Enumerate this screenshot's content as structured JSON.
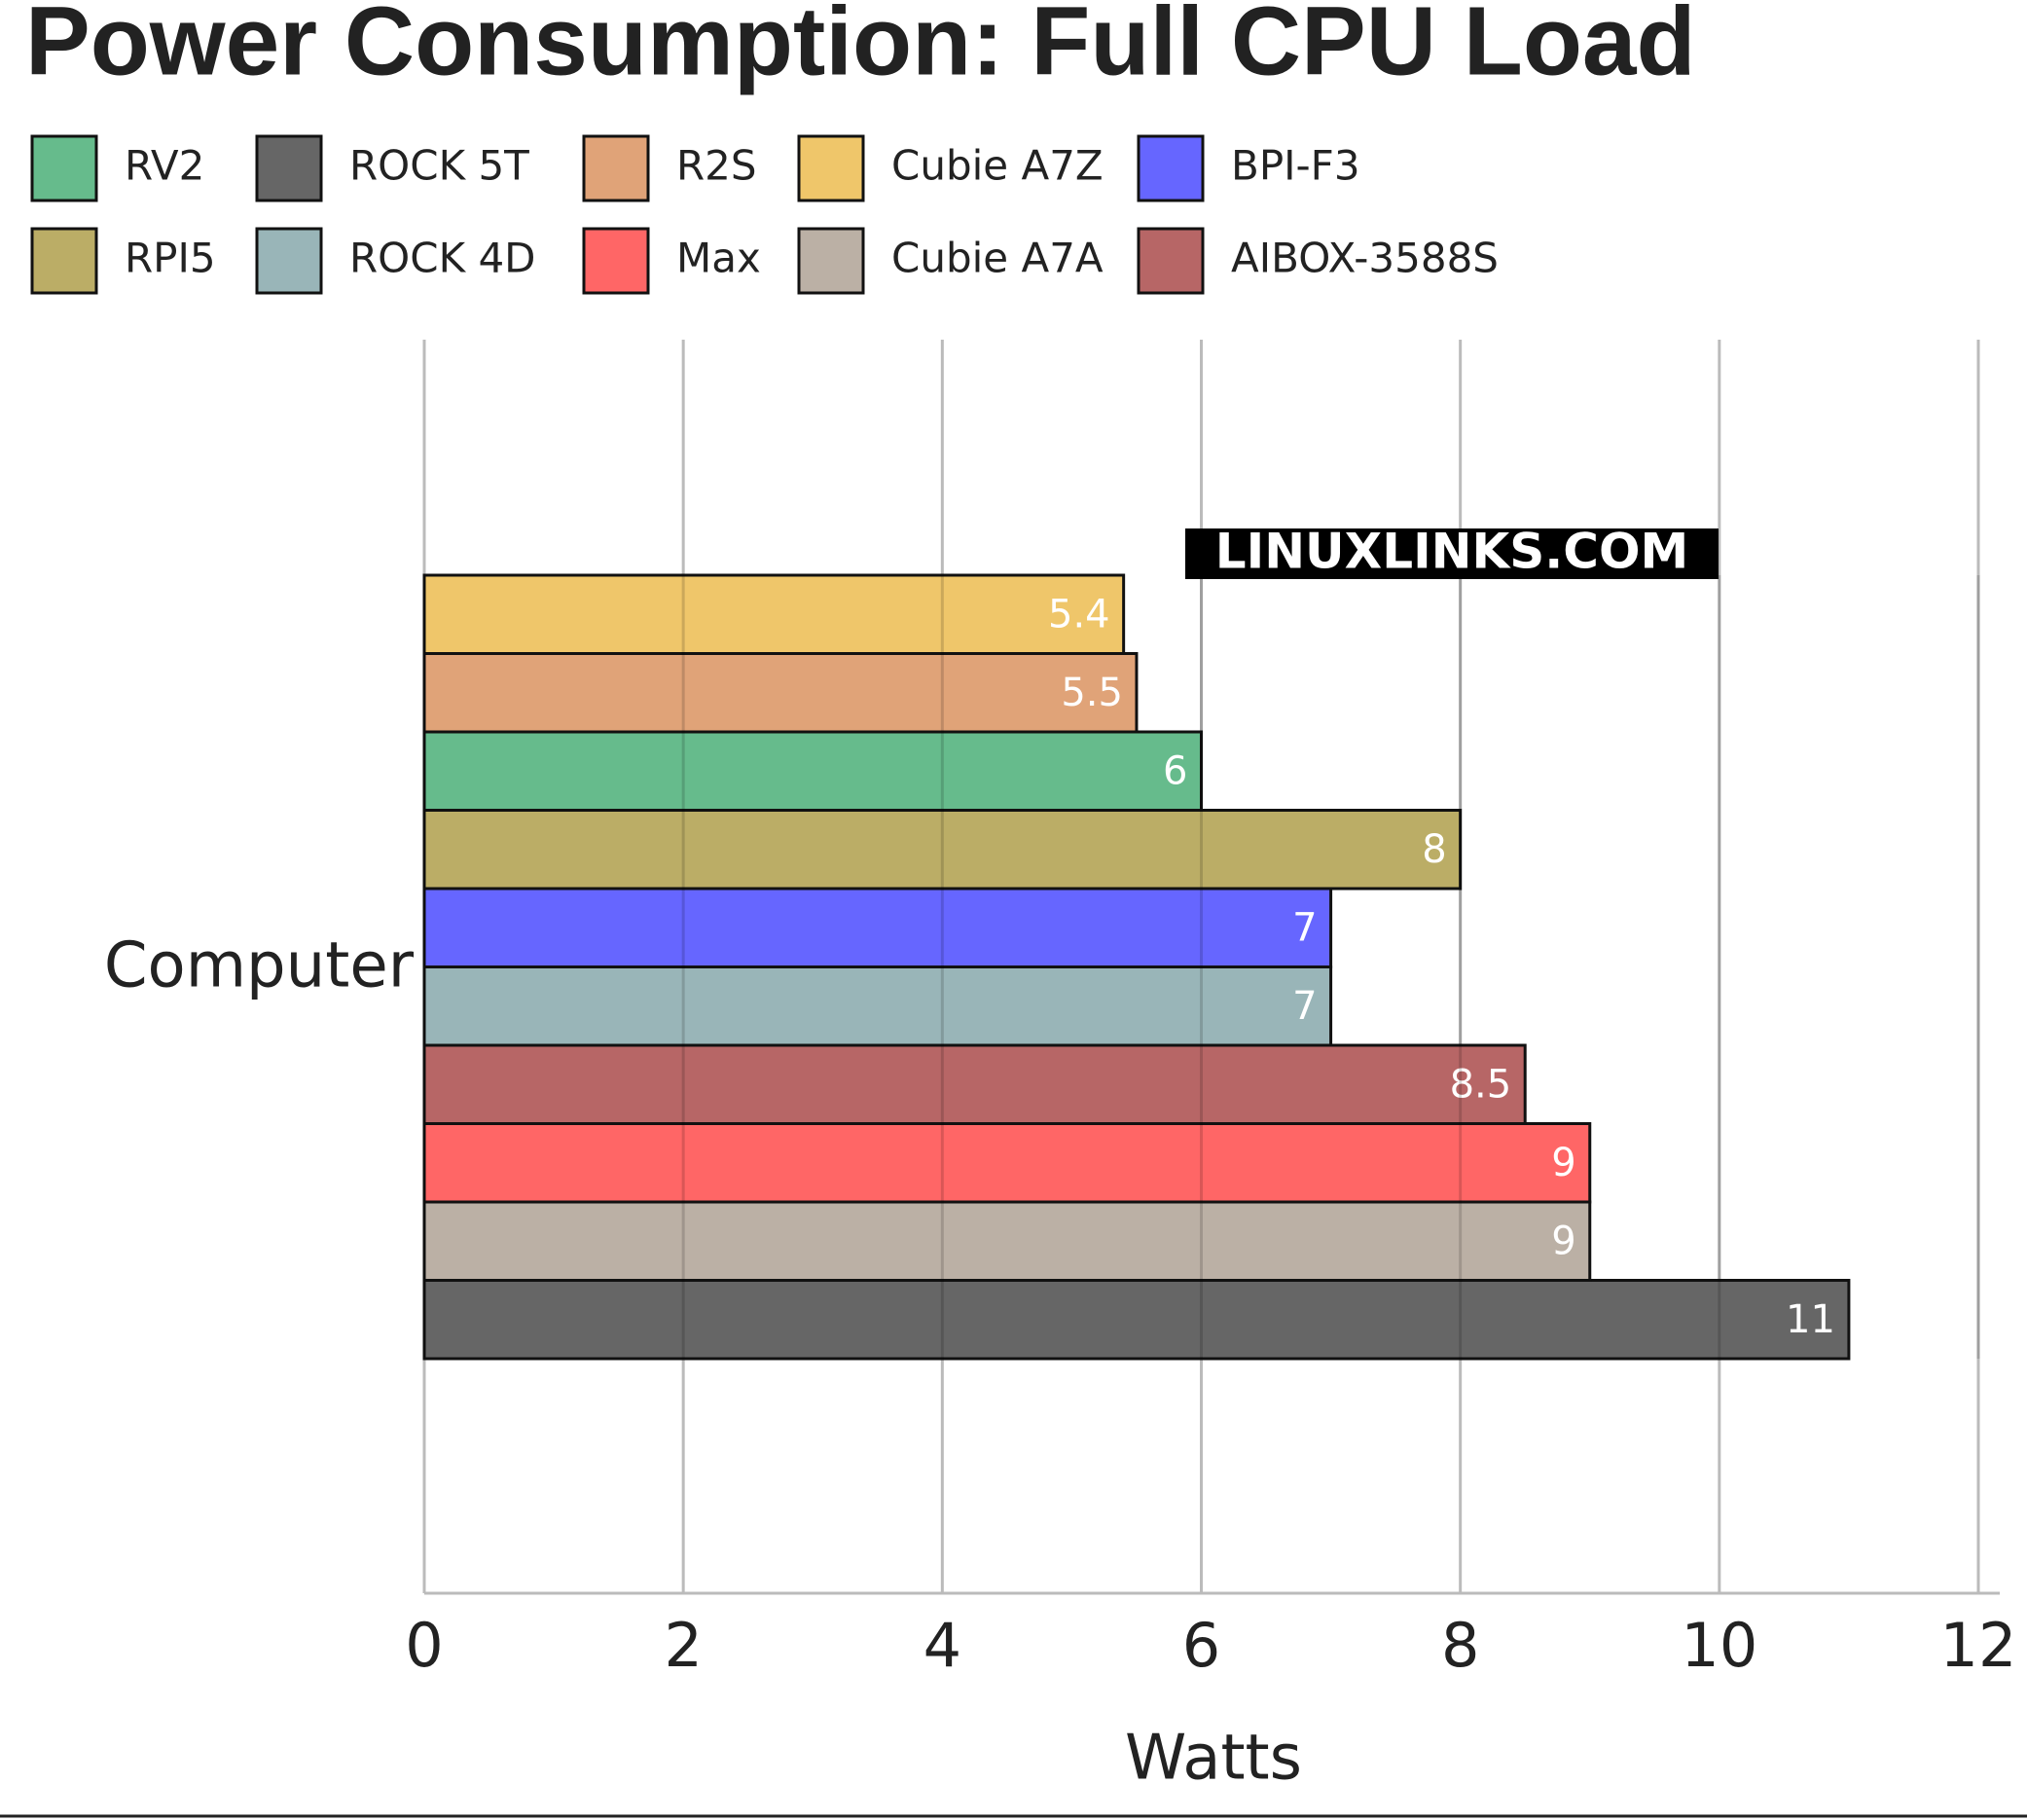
{
  "chart_data": {
    "type": "bar",
    "orientation": "horizontal",
    "title": "Power Consumption: Full CPU Load",
    "watermark": "LINUXLINKS.COM",
    "categories": [
      "Computer"
    ],
    "x_label": "Watts",
    "series": [
      {
        "name": "RV2",
        "color": "#66bb8c",
        "values": [
          6
        ]
      },
      {
        "name": "ROCK 5T",
        "color": "#666666",
        "values": [
          11
        ]
      },
      {
        "name": "R2S",
        "color": "#e0a378",
        "values": [
          5.5
        ]
      },
      {
        "name": "Cubie A7Z",
        "color": "#efc66a",
        "values": [
          5.4
        ]
      },
      {
        "name": "BPI-F3",
        "color": "#6666ff",
        "values": [
          7
        ]
      },
      {
        "name": "RPI5",
        "color": "#bbad66",
        "values": [
          8
        ]
      },
      {
        "name": "ROCK 4D",
        "color": "#99b5b8",
        "values": [
          7
        ]
      },
      {
        "name": "Max",
        "color": "#ff6666",
        "values": [
          9
        ]
      },
      {
        "name": "Cubie A7A",
        "color": "#bbb0a5",
        "values": [
          9
        ]
      },
      {
        "name": "AIBOX-3588S",
        "color": "#b76666",
        "values": [
          8.5
        ]
      }
    ],
    "xlim": [
      0,
      12
    ],
    "xticks": [
      0,
      2,
      4,
      6,
      8,
      10,
      12
    ],
    "grid": true
  }
}
